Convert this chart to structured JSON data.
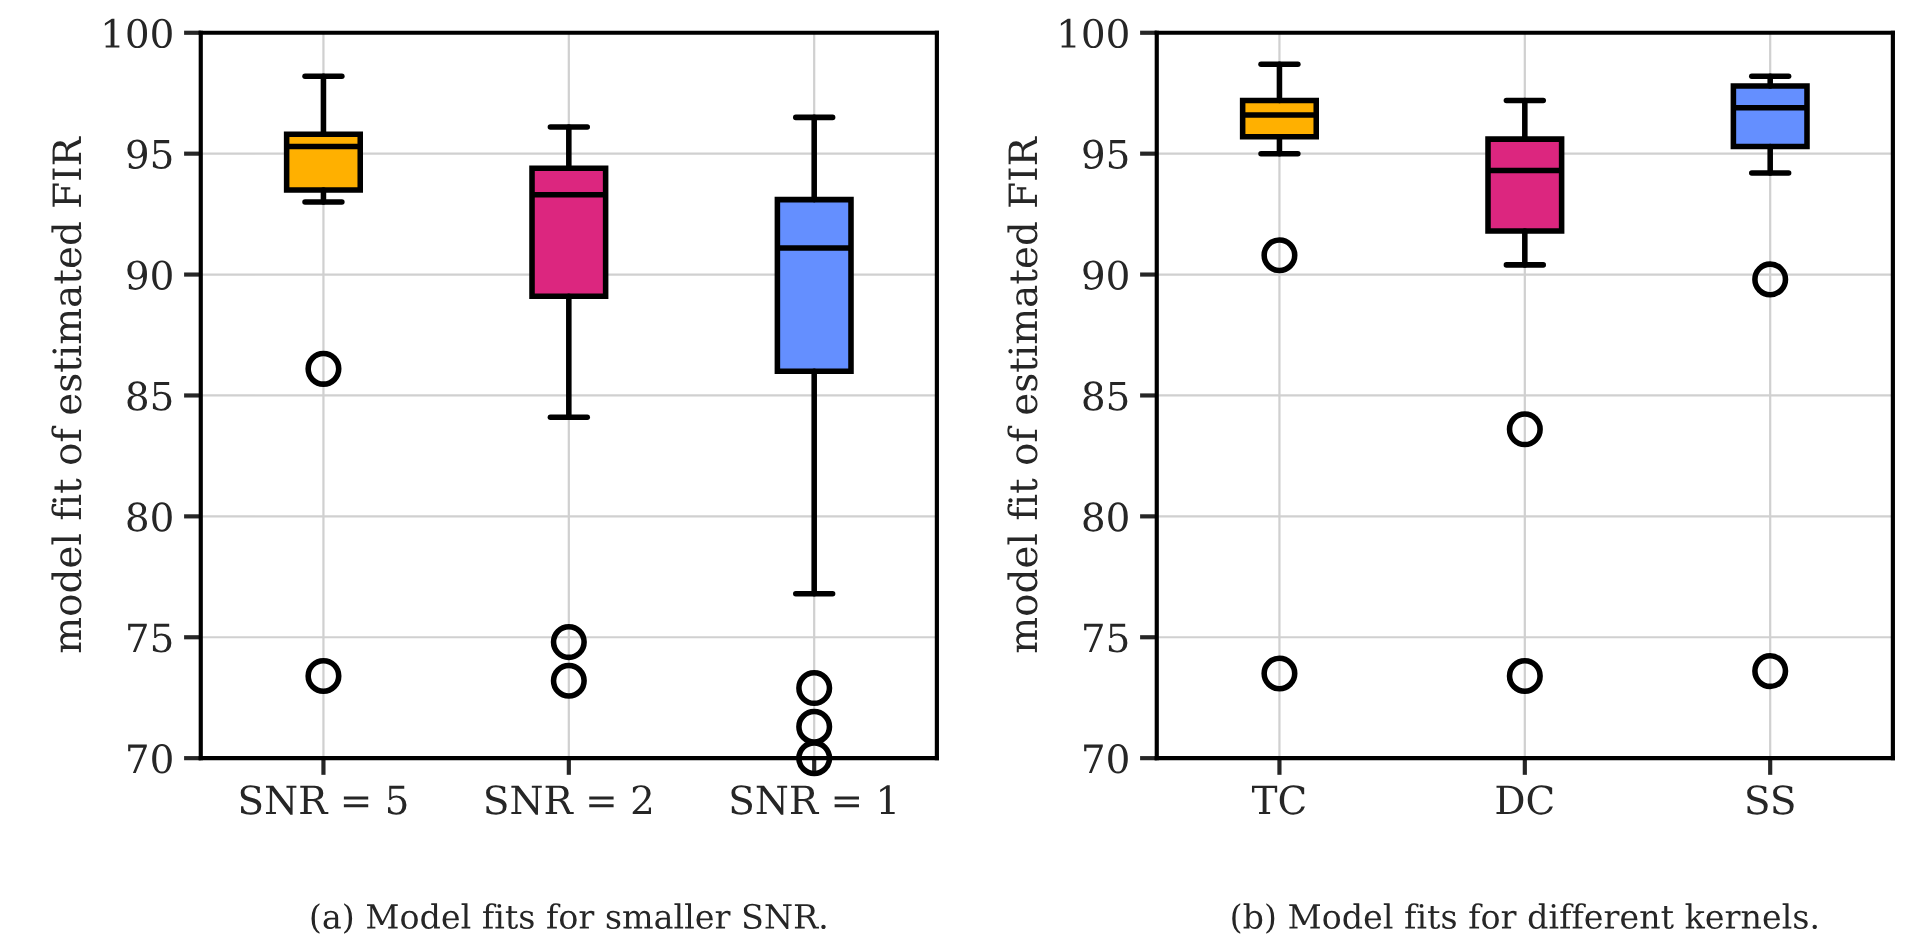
{
  "chart_data": [
    {
      "type": "box",
      "ylabel": "model fit of estimated FIR",
      "categories": [
        "SNR = 5",
        "SNR = 2",
        "SNR = 1"
      ],
      "colors": [
        "#ffb000",
        "#dc267f",
        "#648fff"
      ],
      "boxes": [
        {
          "low": 93.0,
          "q1": 93.5,
          "median": 95.3,
          "q3": 95.8,
          "high": 98.2,
          "outliers": [
            86.1,
            73.4
          ]
        },
        {
          "low": 84.1,
          "q1": 89.1,
          "median": 93.3,
          "q3": 94.4,
          "high": 96.1,
          "outliers": [
            74.8,
            73.2
          ]
        },
        {
          "low": 76.8,
          "q1": 86.0,
          "median": 91.1,
          "q3": 93.1,
          "high": 96.5,
          "outliers": [
            72.9,
            71.3,
            70.0
          ]
        }
      ],
      "ylim": [
        70,
        100
      ],
      "yticks": [
        70,
        75,
        80,
        85,
        90,
        95,
        100
      ],
      "grid": true,
      "annotations": [
        "(a) Model fits for smaller SNR."
      ]
    },
    {
      "type": "box",
      "ylabel": "model fit of estimated FIR",
      "categories": [
        "TC",
        "DC",
        "SS"
      ],
      "colors": [
        "#ffb000",
        "#dc267f",
        "#648fff"
      ],
      "boxes": [
        {
          "low": 95.0,
          "q1": 95.7,
          "median": 96.6,
          "q3": 97.2,
          "high": 98.7,
          "outliers": [
            90.8,
            73.5
          ]
        },
        {
          "low": 90.4,
          "q1": 91.8,
          "median": 94.3,
          "q3": 95.6,
          "high": 97.2,
          "outliers": [
            83.6,
            73.4
          ]
        },
        {
          "low": 94.2,
          "q1": 95.3,
          "median": 96.9,
          "q3": 97.8,
          "high": 98.2,
          "outliers": [
            89.8,
            73.6
          ]
        }
      ],
      "ylim": [
        70,
        100
      ],
      "yticks": [
        70,
        75,
        80,
        85,
        90,
        95,
        100
      ],
      "grid": true,
      "annotations": [
        "(b) Model fits for different kernels."
      ]
    }
  ]
}
